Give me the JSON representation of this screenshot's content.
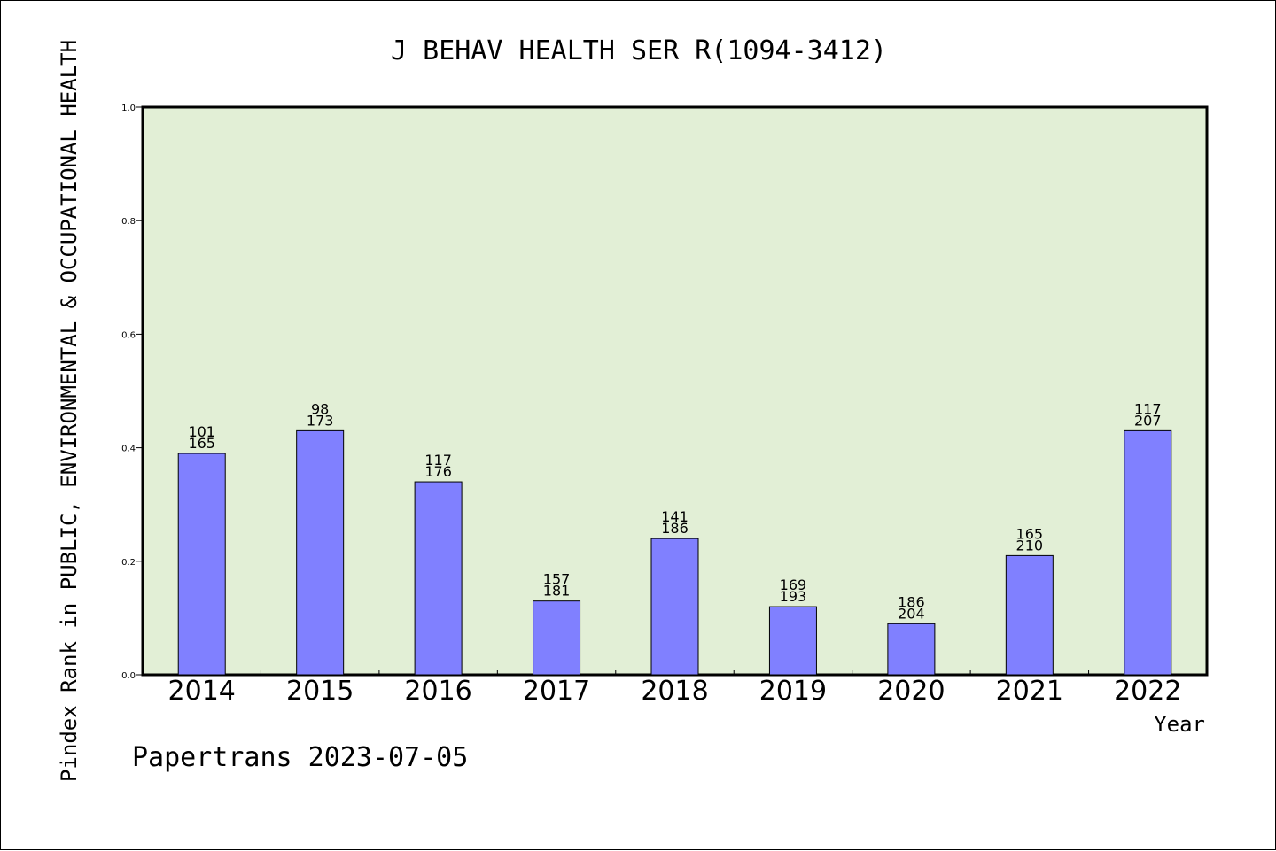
{
  "chart_data": {
    "type": "bar",
    "title": "J BEHAV HEALTH SER R(1094-3412)",
    "ylabel": "Pindex Rank in PUBLIC, ENVIRONMENTAL & OCCUPATIONAL HEALTH",
    "xlabel": "Year",
    "ylim": [
      0,
      1.0
    ],
    "yticks": [
      "0.0",
      "0.2",
      "0.4",
      "0.6",
      "0.8",
      "1.0"
    ],
    "ytick_values": [
      0.0,
      0.2,
      0.4,
      0.6,
      0.8,
      1.0
    ],
    "grid": false,
    "categories": [
      "2014",
      "2015",
      "2016",
      "2017",
      "2018",
      "2019",
      "2020",
      "2021",
      "2022"
    ],
    "values": [
      0.39,
      0.43,
      0.34,
      0.13,
      0.24,
      0.12,
      0.09,
      0.21,
      0.43
    ],
    "rank_labels": [
      "101",
      "98",
      "117",
      "157",
      "141",
      "169",
      "186",
      "165",
      "117"
    ],
    "total_labels": [
      "165",
      "173",
      "176",
      "181",
      "186",
      "193",
      "204",
      "210",
      "207"
    ],
    "credit": "Papertrans 2023-07-05"
  },
  "colors": {
    "plot_bg": "#e2efd6",
    "bar_fill": "#8080ff",
    "bar_stroke": "#000000",
    "axis": "#000000"
  }
}
